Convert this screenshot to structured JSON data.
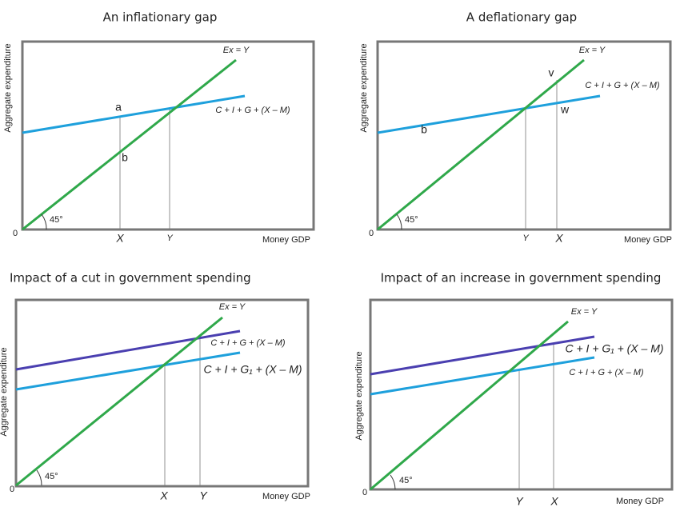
{
  "panels": [
    {
      "title": "An inflationary gap",
      "y_axis_label": "Aggregate expenditure",
      "origin": "0",
      "angle": "45°",
      "x_axis_label": "Money GDP",
      "x_marks": [
        "X",
        "Y"
      ],
      "line_labels": [
        "Ex = Y",
        "C + I + G + (X – M)"
      ],
      "point_labels": [
        "a",
        "b"
      ]
    },
    {
      "title": "A deflationary gap",
      "y_axis_label": "Aggregate expenditure",
      "origin": "0",
      "angle": "45°",
      "x_axis_label": "Money GDP",
      "x_marks": [
        "Y",
        "X"
      ],
      "line_labels": [
        "Ex = Y",
        "C + I + G + (X – M)"
      ],
      "point_labels": [
        "v",
        "w",
        "b"
      ]
    },
    {
      "title": "Impact of a cut in government spending",
      "y_axis_label": "Aggregate expenditure",
      "origin": "0",
      "angle": "45°",
      "x_axis_label": "Money GDP",
      "x_marks": [
        "X",
        "Y"
      ],
      "line_labels": [
        "Ex = Y",
        "C + I + G + (X – M)",
        "C + I + G₁ + (X – M)"
      ]
    },
    {
      "title": "Impact of an increase in government spending",
      "y_axis_label": "Aggregate expenditure",
      "origin": "0",
      "angle": "45°",
      "x_axis_label": "Money GDP",
      "x_marks": [
        "Y",
        "X"
      ],
      "line_labels": [
        "Ex = Y",
        "C + I + G₁ + (X – M)",
        "C + I + G + (X – M)"
      ]
    }
  ]
}
